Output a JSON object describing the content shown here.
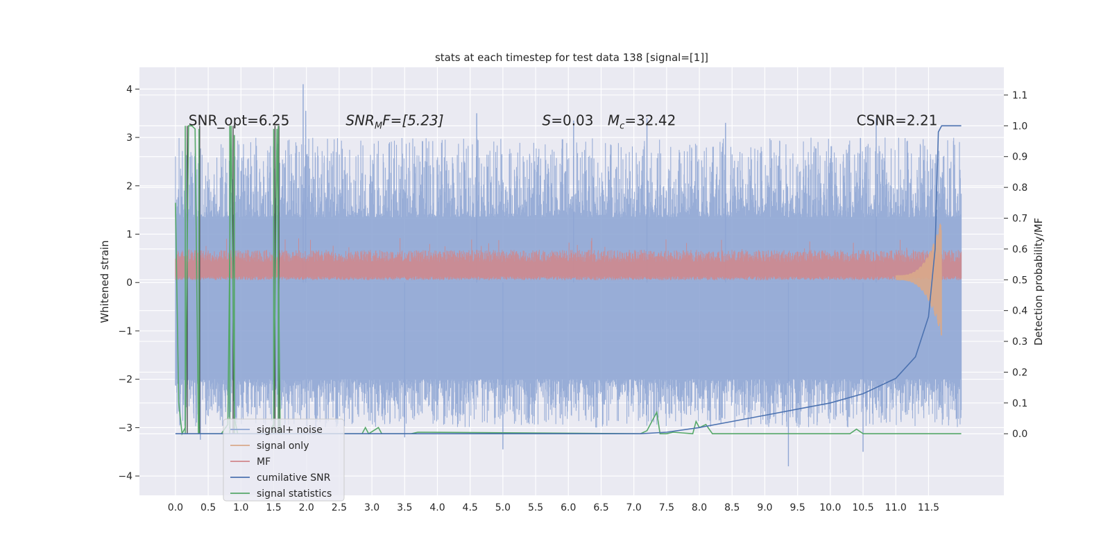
{
  "chart_data": {
    "type": "line",
    "title": "stats at each timestep for test data 138 [signal=[1]]",
    "ylabel": "Whitened strain",
    "ylabel_right": "Detection probability/MF",
    "xlim": [
      -0.55,
      12.65
    ],
    "ylim": [
      -4.4,
      4.45
    ],
    "ylim_right": [
      -0.2,
      1.19
    ],
    "x_ticks": [
      "0.0",
      "0.5",
      "1.0",
      "1.5",
      "2.0",
      "2.5",
      "3.0",
      "3.5",
      "4.0",
      "4.5",
      "5.0",
      "5.5",
      "6.0",
      "6.5",
      "7.0",
      "7.5",
      "8.0",
      "8.5",
      "9.0",
      "9.5",
      "10.0",
      "10.5",
      "11.0",
      "11.5"
    ],
    "y_ticks": [
      "4",
      "3",
      "2",
      "1",
      "0",
      "−1",
      "−2",
      "−3",
      "−4"
    ],
    "y_ticks_right": [
      "1.1",
      "1.0",
      "0.9",
      "0.8",
      "0.7",
      "0.6",
      "0.5",
      "0.4",
      "0.3",
      "0.2",
      "0.1",
      "0.0"
    ],
    "grid": true,
    "legend_position": "lower-left",
    "annotations": [
      {
        "text": "SNR_opt=6.25",
        "x": 0.2,
        "y": 3.25
      },
      {
        "text": "SNR",
        "sub": "M",
        "tail": "F=[5.23]",
        "italic": true,
        "x": 2.6,
        "y": 3.25
      },
      {
        "text": "S",
        "tail": "=0.03",
        "x": 5.6,
        "y": 3.25
      },
      {
        "text": "M",
        "sub": "c",
        "tail": "=32.42",
        "x": 6.6,
        "y": 3.25
      },
      {
        "text": "CSNR=2.21",
        "x": 10.4,
        "y": 3.25
      }
    ],
    "series": [
      {
        "name": "signal+ noise",
        "color": "#8fa6d4",
        "axis": "left",
        "envelope": {
          "x_range": [
            0.0,
            12.0
          ],
          "core_band": [
            -2.0,
            1.35
          ],
          "typical_peaks": [
            2.4,
            -2.6
          ]
        },
        "spikes": [
          {
            "x": 1.95,
            "y": 4.1
          },
          {
            "x": 1.99,
            "y": 3.55
          },
          {
            "x": 4.6,
            "y": 3.5
          },
          {
            "x": 9.36,
            "y": -3.8
          },
          {
            "x": 10.5,
            "y": -3.5
          },
          {
            "x": 5.0,
            "y": -3.45
          },
          {
            "x": 0.38,
            "y": -3.25
          },
          {
            "x": 6.08,
            "y": 3.35
          },
          {
            "x": 7.2,
            "y": 3.4
          },
          {
            "x": 8.4,
            "y": 3.3
          },
          {
            "x": 10.7,
            "y": 3.4
          },
          {
            "x": 3.5,
            "y": -3.2
          }
        ]
      },
      {
        "name": "signal only",
        "color": "#d9a98a",
        "axis": "left",
        "x": [
          11.2,
          11.3,
          11.4,
          11.5,
          11.55,
          11.6,
          11.63,
          11.66,
          11.7
        ],
        "y": [
          0.3,
          0.35,
          0.45,
          0.6,
          0.8,
          1.1,
          -1.3,
          0.8,
          0.1
        ]
      },
      {
        "name": "MF",
        "color": "#d1868a",
        "axis": "left",
        "envelope": {
          "x_range": [
            0.0,
            12.0
          ],
          "band": [
            0.05,
            0.55
          ],
          "peaks": [
            0.85,
            0.0
          ]
        }
      },
      {
        "name": "cumilative SNR",
        "color": "#4c72b0",
        "axis": "right",
        "x": [
          0.0,
          7.1,
          7.5,
          8.0,
          8.5,
          9.0,
          9.5,
          10.0,
          10.5,
          11.0,
          11.3,
          11.5,
          11.6,
          11.65,
          11.7,
          12.0
        ],
        "y": [
          0.0,
          0.0,
          0.005,
          0.02,
          0.04,
          0.06,
          0.08,
          0.1,
          0.13,
          0.18,
          0.25,
          0.38,
          0.6,
          0.98,
          1.0,
          1.0
        ]
      },
      {
        "name": "signal statistics",
        "color": "#55a868",
        "axis": "right",
        "x": [
          0.0,
          0.05,
          0.1,
          0.15,
          0.2,
          0.25,
          0.3,
          0.35,
          0.4,
          0.45,
          0.7,
          0.8,
          0.85,
          0.9,
          0.95,
          1.0,
          1.4,
          1.5,
          1.55,
          1.6,
          1.7,
          2.85,
          2.9,
          2.95,
          3.1,
          3.15,
          3.2,
          3.6,
          3.7,
          7.1,
          7.2,
          7.3,
          7.35,
          7.4,
          7.45,
          7.5,
          7.6,
          7.9,
          7.95,
          8.0,
          8.1,
          8.2,
          8.3,
          10.3,
          10.4,
          10.5,
          12.0
        ],
        "y": [
          0.75,
          0.1,
          0.0,
          0.02,
          1.0,
          1.0,
          0.99,
          0.0,
          0.0,
          0.0,
          0.0,
          0.03,
          1.0,
          0.05,
          0.0,
          0.0,
          0.0,
          0.03,
          0.99,
          0.0,
          0.0,
          0.0,
          0.02,
          0.0,
          0.02,
          0.0,
          0.0,
          0.0,
          0.005,
          0.0,
          0.01,
          0.05,
          0.07,
          0.0,
          0.0,
          0.0,
          0.005,
          0.0,
          0.04,
          0.02,
          0.03,
          0.0,
          0.0,
          0.0,
          0.015,
          0.0,
          0.0
        ]
      }
    ],
    "signal_statistics_pulses": [
      {
        "x": 0.15,
        "top": 1.0
      },
      {
        "x": 0.36,
        "top": 0.99
      },
      {
        "x": 0.83,
        "top": 1.0
      },
      {
        "x": 0.9,
        "top": 0.97
      },
      {
        "x": 1.5,
        "top": 0.99
      },
      {
        "x": 1.57,
        "top": 1.0
      }
    ],
    "dark_pulses": [
      0.18,
      0.37,
      0.83,
      0.88,
      1.52,
      1.58
    ]
  }
}
